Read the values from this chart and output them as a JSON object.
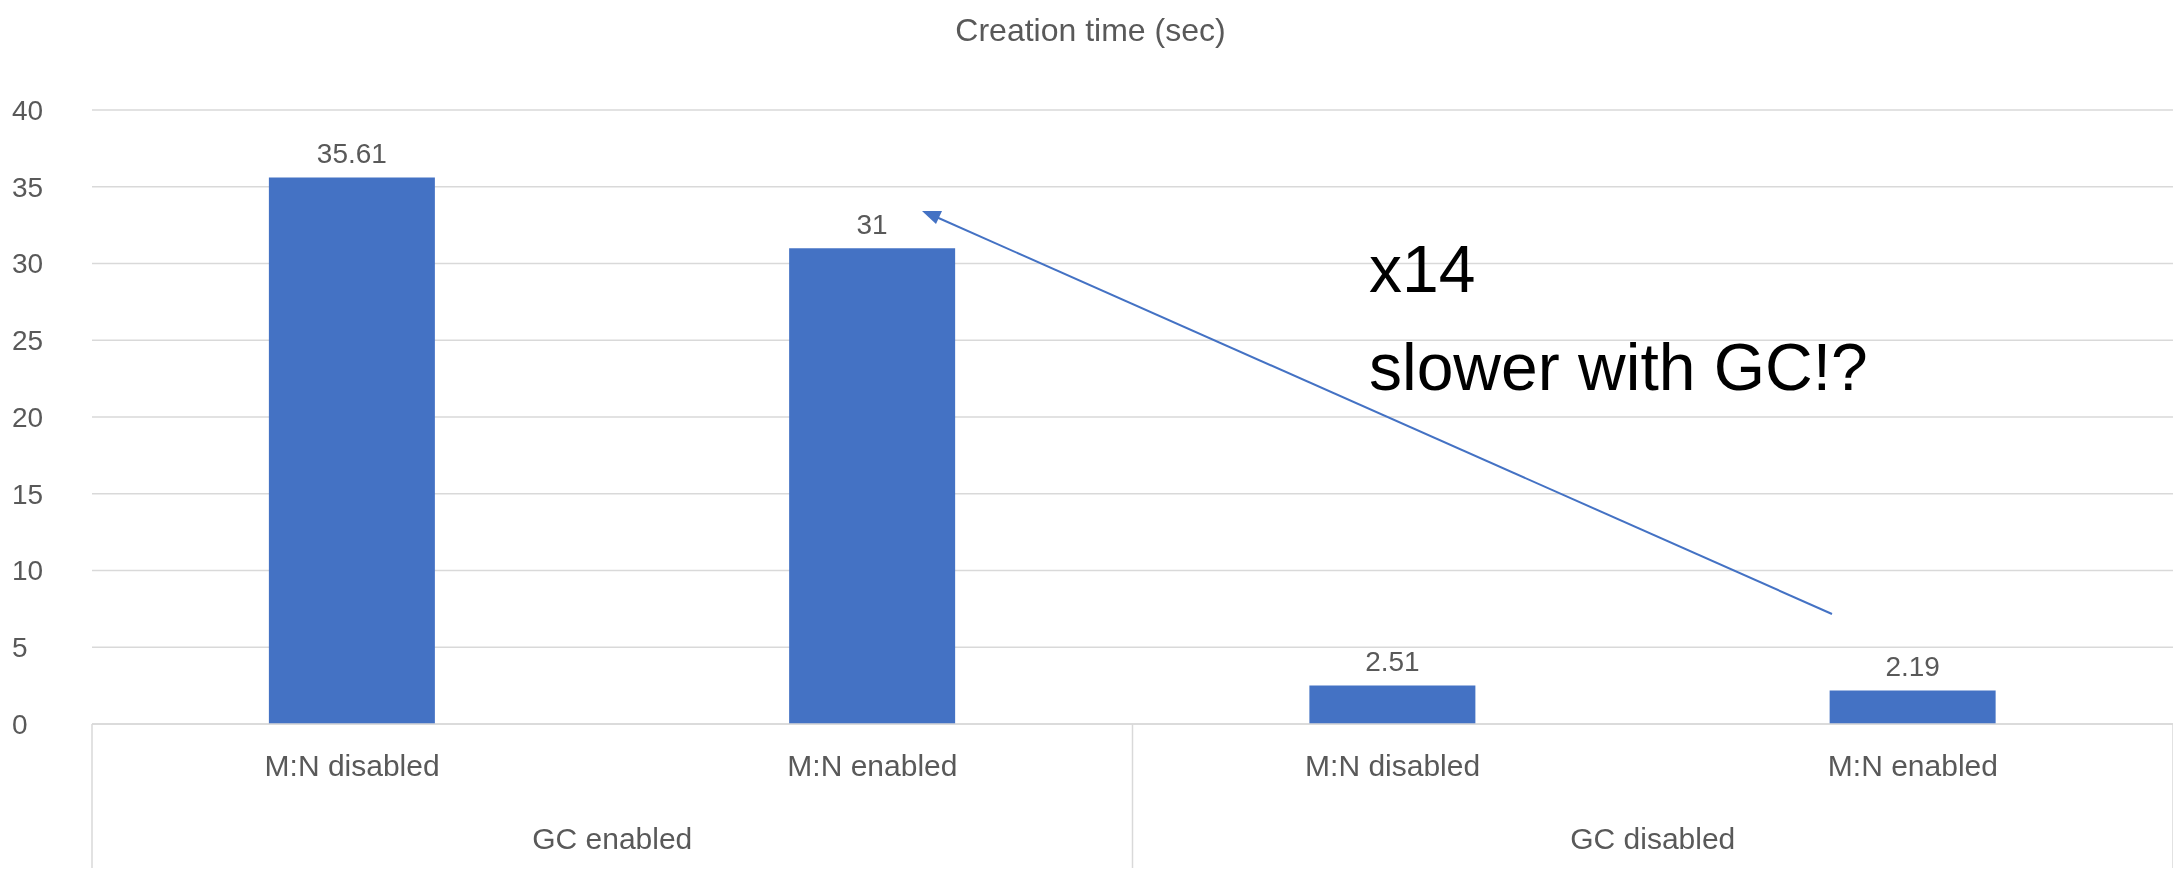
{
  "chart_data": {
    "type": "bar",
    "title": "Creation time (sec)",
    "categories": [
      "M:N disabled",
      "M:N enabled",
      "M:N disabled",
      "M:N enabled"
    ],
    "values": [
      35.61,
      31,
      2.51,
      2.19
    ],
    "color": "#4472c4",
    "ylim": [
      0,
      40
    ],
    "yticks": [
      0,
      5,
      10,
      15,
      20,
      25,
      30,
      35,
      40
    ],
    "grid": "y",
    "data_labels": true,
    "annotations": [
      "x14\nslower with GC!?",
      "GC enabled",
      "GC disabled"
    ]
  }
}
